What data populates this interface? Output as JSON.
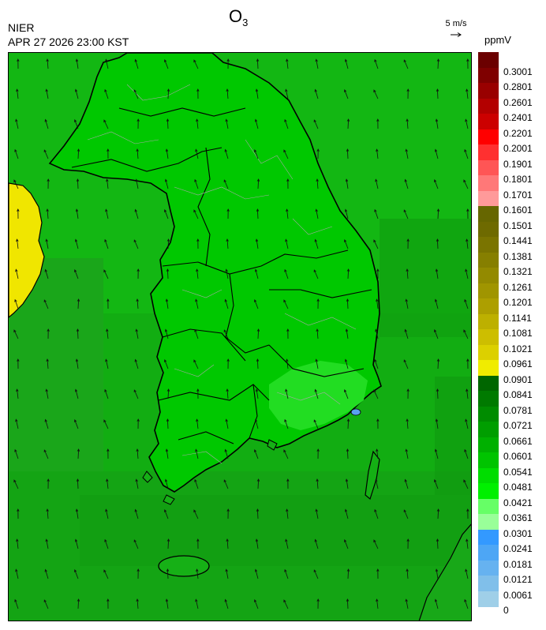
{
  "header": {
    "org": "NIER",
    "timestamp": "APR 27 2026 23:00 KST",
    "title_main": "O",
    "title_sub": "3",
    "wind_ref_label": "5 m/s",
    "unit": "ppmV"
  },
  "colors": {
    "map_bg": "#10b010",
    "land_green": "#00cc00",
    "land_border": "#000000",
    "province_border": "#9a9a9a",
    "yellow_region": "#f0e600",
    "blue_spot": "#5aa0f0"
  },
  "legend": [
    {
      "label": "0.3001",
      "color": "#6b0000"
    },
    {
      "label": "0.2801",
      "color": "#7f0000"
    },
    {
      "label": "0.2601",
      "color": "#990000"
    },
    {
      "label": "0.2401",
      "color": "#b30000"
    },
    {
      "label": "0.2201",
      "color": "#cc0000"
    },
    {
      "label": "0.2001",
      "color": "#ff0000"
    },
    {
      "label": "0.1901",
      "color": "#ff3030"
    },
    {
      "label": "0.1801",
      "color": "#ff5555"
    },
    {
      "label": "0.1701",
      "color": "#ff7878"
    },
    {
      "label": "0.1601",
      "color": "#ff9a9a"
    },
    {
      "label": "0.1501",
      "color": "#666600"
    },
    {
      "label": "0.1441",
      "color": "#6e6a00"
    },
    {
      "label": "0.1381",
      "color": "#7a7400"
    },
    {
      "label": "0.1321",
      "color": "#867f00"
    },
    {
      "label": "0.1261",
      "color": "#938a00"
    },
    {
      "label": "0.1201",
      "color": "#a09500"
    },
    {
      "label": "0.1141",
      "color": "#ad9f00"
    },
    {
      "label": "0.1081",
      "color": "#bdb000"
    },
    {
      "label": "0.1021",
      "color": "#cdbe00"
    },
    {
      "label": "0.0961",
      "color": "#dcd000"
    },
    {
      "label": "0.0901",
      "color": "#f0ec00"
    },
    {
      "label": "0.0841",
      "color": "#006600"
    },
    {
      "label": "0.0781",
      "color": "#007a00"
    },
    {
      "label": "0.0721",
      "color": "#008c00"
    },
    {
      "label": "0.0661",
      "color": "#009e00"
    },
    {
      "label": "0.0601",
      "color": "#00b000"
    },
    {
      "label": "0.0541",
      "color": "#00c400"
    },
    {
      "label": "0.0481",
      "color": "#00dd00"
    },
    {
      "label": "0.0421",
      "color": "#00f000"
    },
    {
      "label": "0.0361",
      "color": "#66ff66"
    },
    {
      "label": "0.0301",
      "color": "#99ff99"
    },
    {
      "label": "0.0241",
      "color": "#3399ff"
    },
    {
      "label": "0.0181",
      "color": "#4da6f5"
    },
    {
      "label": "0.0121",
      "color": "#66b2f0"
    },
    {
      "label": "0.0061",
      "color": "#80bfea"
    },
    {
      "label": "0",
      "color": "#9fcfe8"
    }
  ]
}
